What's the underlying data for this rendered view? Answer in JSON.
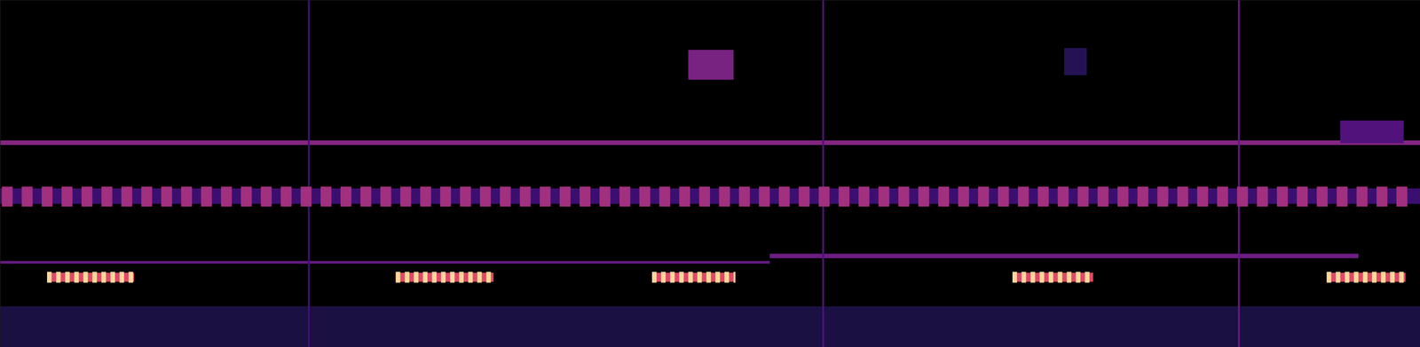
{
  "chart_data": {
    "type": "spectrogram",
    "color": "magma",
    "tick_labels": false,
    "xlim": [
      0,
      1568
    ],
    "ylim": [
      0,
      383
    ],
    "xticks": [],
    "yticks": [],
    "color_range": [
      0,
      1
    ],
    "cells": [
      [
        0,
        1568,
        0,
        45,
        0.12
      ],
      [
        0,
        1568,
        223,
        228,
        0.38
      ],
      [
        0,
        1568,
        158,
        175,
        0.2
      ],
      [
        0,
        850,
        92,
        95,
        0.3
      ],
      [
        850,
        1500,
        98,
        103,
        0.32
      ],
      [
        340,
        342,
        0,
        383,
        0.22
      ],
      [
        908,
        910,
        0,
        383,
        0.25
      ],
      [
        1367,
        1369,
        0,
        383,
        0.3
      ],
      [
        760,
        810,
        295,
        328,
        0.35
      ],
      [
        1480,
        1550,
        225,
        250,
        0.25
      ],
      [
        1175,
        1200,
        300,
        330,
        0.15
      ],
      [
        2,
        14,
        155,
        177,
        0.45
      ],
      [
        24,
        36,
        155,
        177,
        0.45
      ],
      [
        46,
        58,
        155,
        177,
        0.45
      ],
      [
        68,
        80,
        155,
        177,
        0.45
      ],
      [
        90,
        102,
        155,
        177,
        0.45
      ],
      [
        112,
        124,
        155,
        177,
        0.45
      ],
      [
        134,
        146,
        155,
        177,
        0.45
      ],
      [
        156,
        168,
        155,
        177,
        0.45
      ],
      [
        178,
        190,
        155,
        177,
        0.45
      ],
      [
        200,
        212,
        155,
        177,
        0.45
      ],
      [
        222,
        234,
        155,
        177,
        0.45
      ],
      [
        244,
        256,
        155,
        177,
        0.45
      ],
      [
        266,
        278,
        155,
        177,
        0.45
      ],
      [
        288,
        300,
        155,
        177,
        0.45
      ],
      [
        310,
        322,
        155,
        177,
        0.45
      ],
      [
        332,
        344,
        155,
        177,
        0.45
      ],
      [
        354,
        366,
        155,
        177,
        0.45
      ],
      [
        376,
        388,
        155,
        177,
        0.45
      ],
      [
        398,
        410,
        155,
        177,
        0.45
      ],
      [
        420,
        432,
        155,
        177,
        0.45
      ],
      [
        442,
        454,
        155,
        177,
        0.45
      ],
      [
        464,
        476,
        155,
        177,
        0.45
      ],
      [
        486,
        498,
        155,
        177,
        0.45
      ],
      [
        508,
        520,
        155,
        177,
        0.45
      ],
      [
        530,
        542,
        155,
        177,
        0.45
      ],
      [
        552,
        564,
        155,
        177,
        0.45
      ],
      [
        574,
        586,
        155,
        177,
        0.45
      ],
      [
        596,
        608,
        155,
        177,
        0.45
      ],
      [
        618,
        630,
        155,
        177,
        0.45
      ],
      [
        640,
        652,
        155,
        177,
        0.45
      ],
      [
        662,
        674,
        155,
        177,
        0.45
      ],
      [
        684,
        696,
        155,
        177,
        0.45
      ],
      [
        706,
        718,
        155,
        177,
        0.45
      ],
      [
        728,
        740,
        155,
        177,
        0.45
      ],
      [
        750,
        762,
        155,
        177,
        0.45
      ],
      [
        772,
        784,
        155,
        177,
        0.45
      ],
      [
        794,
        806,
        155,
        177,
        0.45
      ],
      [
        816,
        828,
        155,
        177,
        0.45
      ],
      [
        838,
        850,
        155,
        177,
        0.45
      ],
      [
        860,
        872,
        155,
        177,
        0.45
      ],
      [
        882,
        894,
        155,
        177,
        0.45
      ],
      [
        904,
        916,
        155,
        177,
        0.45
      ],
      [
        926,
        938,
        155,
        177,
        0.45
      ],
      [
        948,
        960,
        155,
        177,
        0.45
      ],
      [
        970,
        982,
        155,
        177,
        0.45
      ],
      [
        992,
        1004,
        155,
        177,
        0.45
      ],
      [
        1014,
        1026,
        155,
        177,
        0.45
      ],
      [
        1036,
        1048,
        155,
        177,
        0.45
      ],
      [
        1058,
        1070,
        155,
        177,
        0.45
      ],
      [
        1080,
        1092,
        155,
        177,
        0.45
      ],
      [
        1102,
        1114,
        155,
        177,
        0.45
      ],
      [
        1124,
        1136,
        155,
        177,
        0.45
      ],
      [
        1146,
        1158,
        155,
        177,
        0.45
      ],
      [
        1168,
        1180,
        155,
        177,
        0.45
      ],
      [
        1190,
        1202,
        155,
        177,
        0.45
      ],
      [
        1212,
        1224,
        155,
        177,
        0.45
      ],
      [
        1234,
        1246,
        155,
        177,
        0.45
      ],
      [
        1256,
        1268,
        155,
        177,
        0.45
      ],
      [
        1278,
        1290,
        155,
        177,
        0.45
      ],
      [
        1300,
        1312,
        155,
        177,
        0.45
      ],
      [
        1322,
        1334,
        155,
        177,
        0.45
      ],
      [
        1344,
        1356,
        155,
        177,
        0.45
      ],
      [
        1366,
        1378,
        155,
        177,
        0.45
      ],
      [
        1388,
        1400,
        155,
        177,
        0.45
      ],
      [
        1410,
        1422,
        155,
        177,
        0.45
      ],
      [
        1432,
        1444,
        155,
        177,
        0.45
      ],
      [
        1454,
        1466,
        155,
        177,
        0.45
      ],
      [
        1476,
        1488,
        155,
        177,
        0.45
      ],
      [
        1498,
        1510,
        155,
        177,
        0.45
      ],
      [
        1520,
        1532,
        155,
        177,
        0.45
      ],
      [
        1542,
        1554,
        155,
        177,
        0.45
      ],
      [
        52,
        148,
        72,
        82,
        0.6
      ],
      [
        52,
        57,
        71,
        83,
        0.92
      ],
      [
        62,
        67,
        71,
        83,
        0.92
      ],
      [
        72,
        77,
        71,
        83,
        0.92
      ],
      [
        82,
        87,
        71,
        83,
        0.92
      ],
      [
        92,
        97,
        71,
        83,
        0.92
      ],
      [
        102,
        107,
        71,
        83,
        0.92
      ],
      [
        112,
        117,
        71,
        83,
        0.92
      ],
      [
        122,
        127,
        71,
        83,
        0.92
      ],
      [
        132,
        137,
        71,
        83,
        0.92
      ],
      [
        142,
        147,
        71,
        83,
        0.92
      ],
      [
        437,
        545,
        72,
        82,
        0.6
      ],
      [
        437,
        442,
        71,
        83,
        0.92
      ],
      [
        447,
        452,
        71,
        83,
        0.92
      ],
      [
        457,
        462,
        71,
        83,
        0.92
      ],
      [
        467,
        472,
        71,
        83,
        0.92
      ],
      [
        477,
        482,
        71,
        83,
        0.92
      ],
      [
        487,
        492,
        71,
        83,
        0.92
      ],
      [
        497,
        502,
        71,
        83,
        0.92
      ],
      [
        507,
        512,
        71,
        83,
        0.92
      ],
      [
        517,
        522,
        71,
        83,
        0.92
      ],
      [
        527,
        532,
        71,
        83,
        0.92
      ],
      [
        537,
        542,
        71,
        83,
        0.92
      ],
      [
        720,
        812,
        72,
        82,
        0.6
      ],
      [
        720,
        725,
        71,
        83,
        0.92
      ],
      [
        730,
        735,
        71,
        83,
        0.92
      ],
      [
        740,
        745,
        71,
        83,
        0.92
      ],
      [
        750,
        755,
        71,
        83,
        0.92
      ],
      [
        760,
        765,
        71,
        83,
        0.92
      ],
      [
        770,
        775,
        71,
        83,
        0.92
      ],
      [
        780,
        785,
        71,
        83,
        0.92
      ],
      [
        790,
        795,
        71,
        83,
        0.92
      ],
      [
        800,
        805,
        71,
        83,
        0.92
      ],
      [
        810,
        812,
        71,
        83,
        0.92
      ],
      [
        1118,
        1207,
        72,
        82,
        0.6
      ],
      [
        1118,
        1123,
        71,
        83,
        0.92
      ],
      [
        1128,
        1133,
        71,
        83,
        0.92
      ],
      [
        1138,
        1143,
        71,
        83,
        0.92
      ],
      [
        1148,
        1153,
        71,
        83,
        0.92
      ],
      [
        1158,
        1163,
        71,
        83,
        0.92
      ],
      [
        1168,
        1173,
        71,
        83,
        0.92
      ],
      [
        1178,
        1183,
        71,
        83,
        0.92
      ],
      [
        1188,
        1193,
        71,
        83,
        0.92
      ],
      [
        1198,
        1203,
        71,
        83,
        0.92
      ],
      [
        1465,
        1552,
        72,
        82,
        0.6
      ],
      [
        1465,
        1470,
        71,
        83,
        0.92
      ],
      [
        1475,
        1480,
        71,
        83,
        0.92
      ],
      [
        1485,
        1490,
        71,
        83,
        0.92
      ],
      [
        1495,
        1500,
        71,
        83,
        0.92
      ],
      [
        1505,
        1510,
        71,
        83,
        0.92
      ],
      [
        1515,
        1520,
        71,
        83,
        0.92
      ],
      [
        1525,
        1530,
        71,
        83,
        0.92
      ],
      [
        1535,
        1540,
        71,
        83,
        0.92
      ],
      [
        1545,
        1550,
        71,
        83,
        0.92
      ]
    ]
  }
}
